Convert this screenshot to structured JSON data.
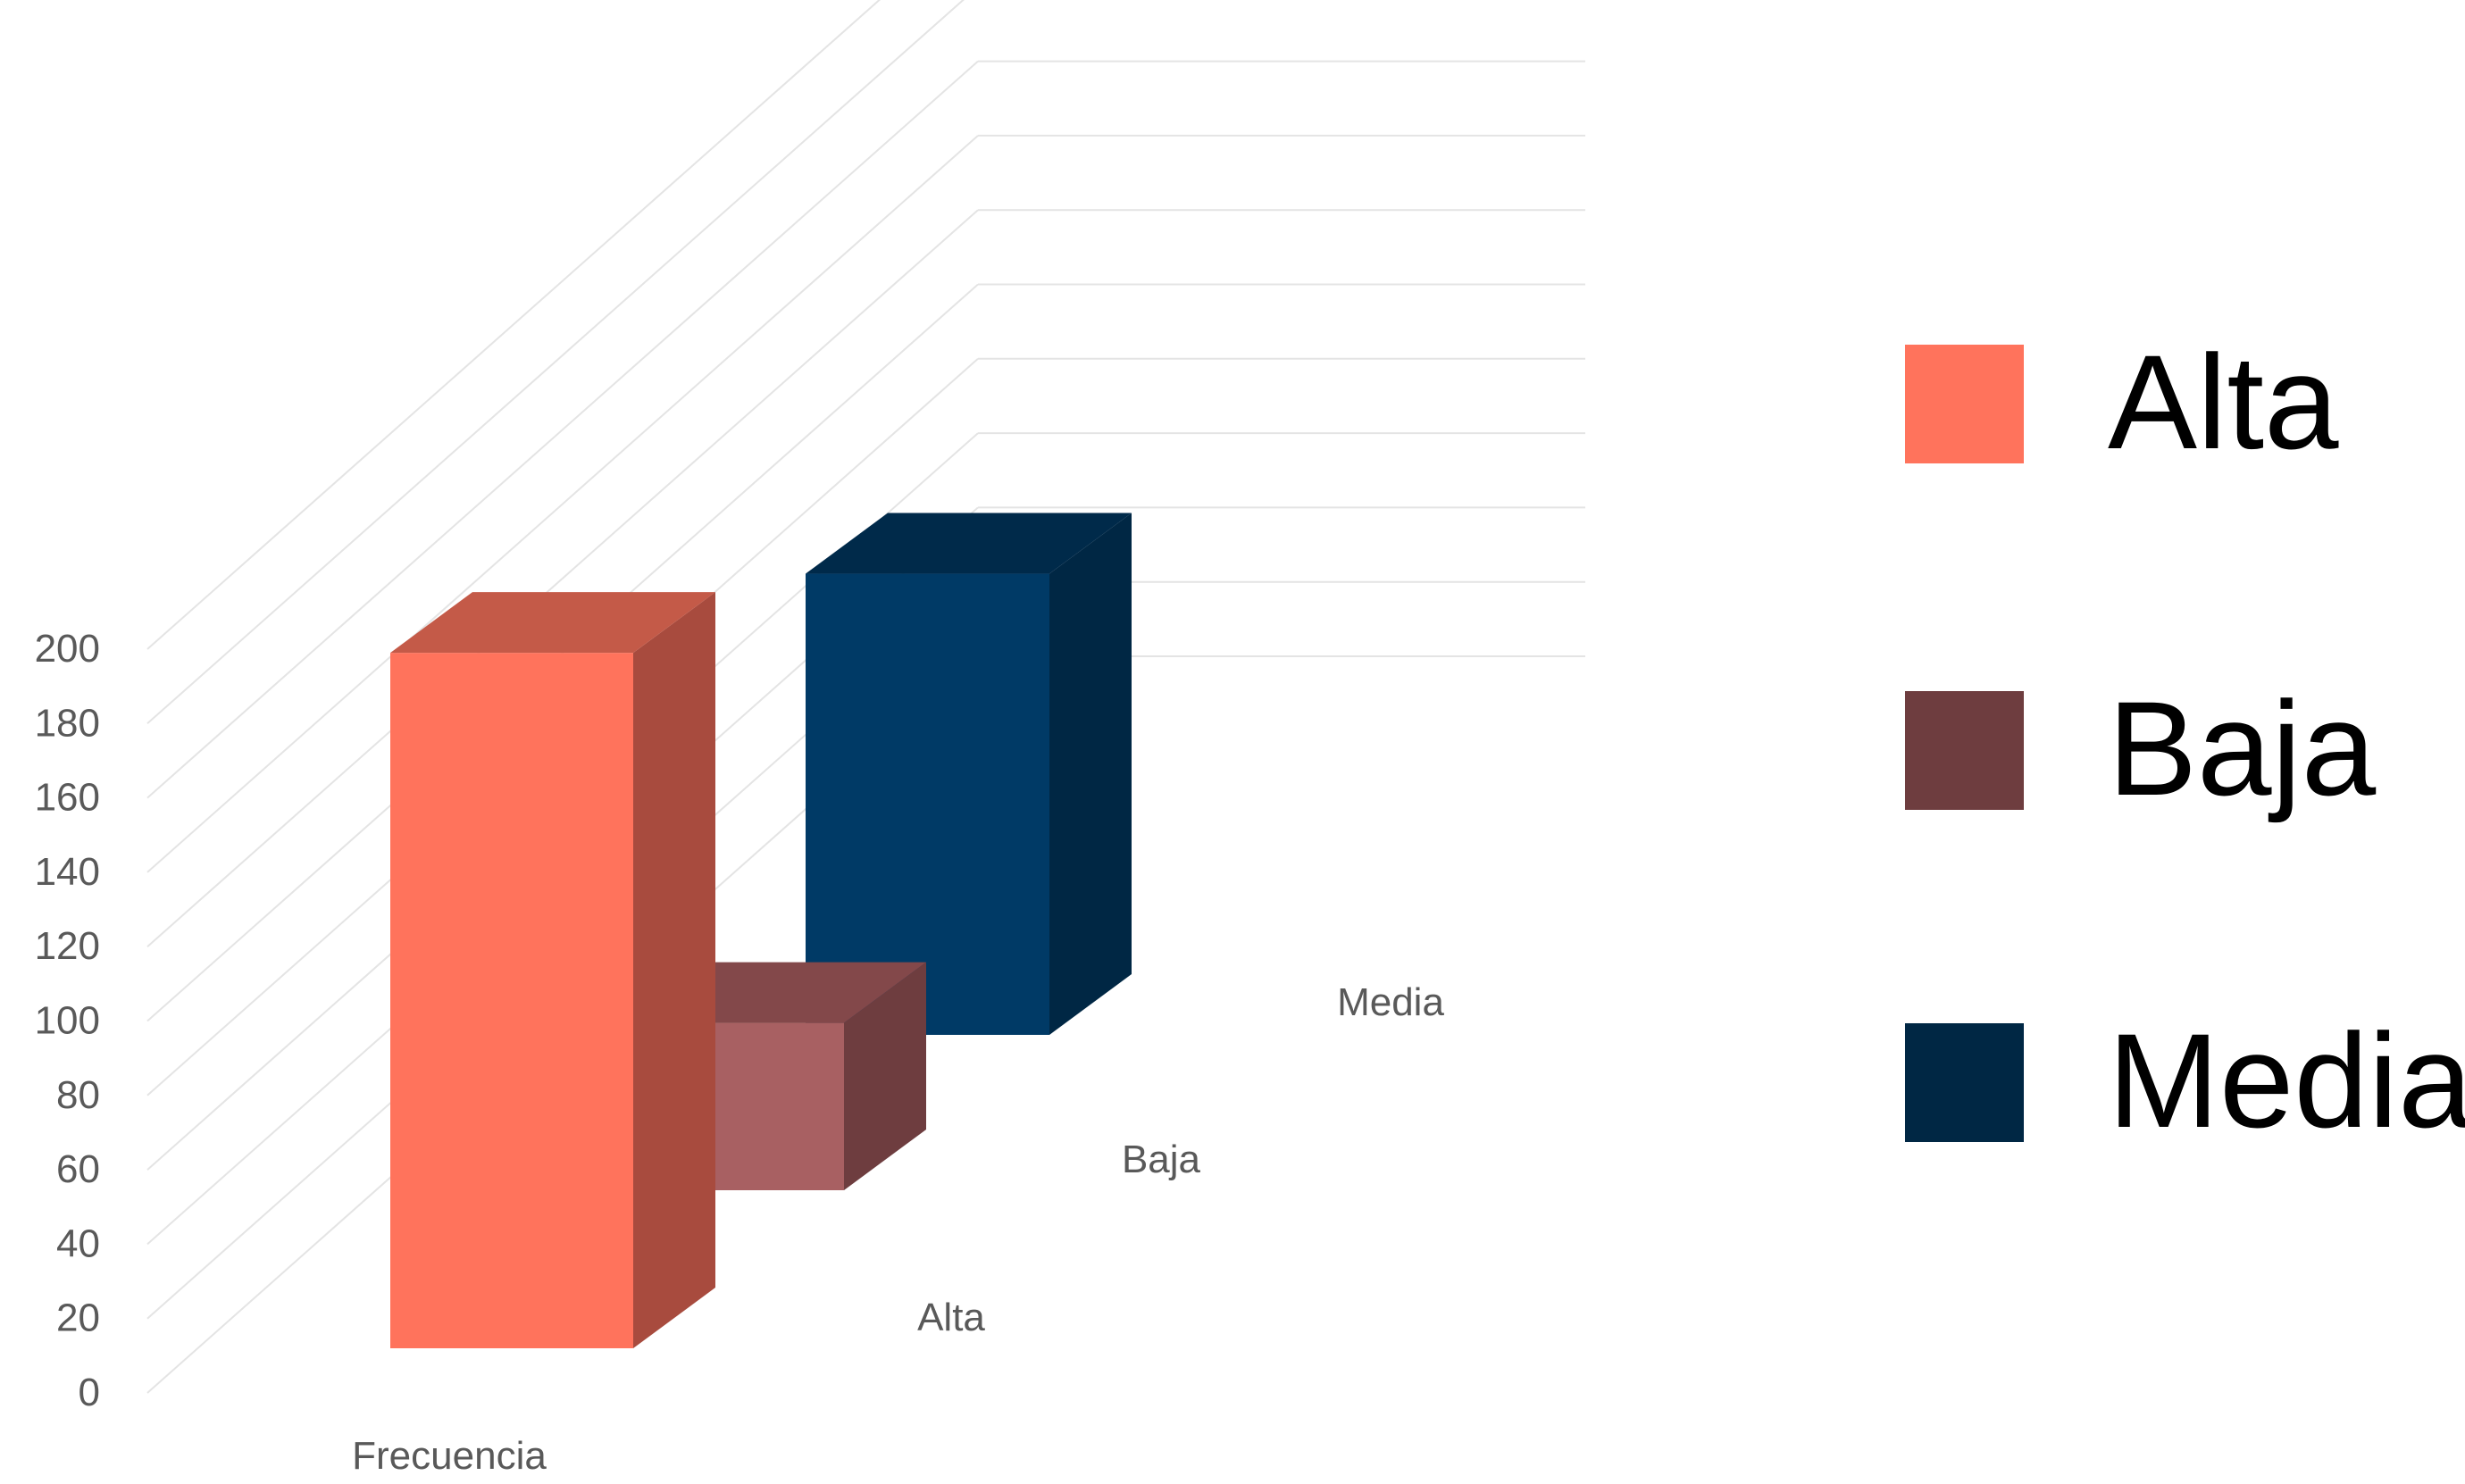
{
  "chart_data": {
    "type": "bar",
    "variant": "3d-column",
    "title": "",
    "xlabel": "",
    "ylabel": "",
    "ylim": [
      0,
      200
    ],
    "yticks": [
      0,
      20,
      40,
      60,
      80,
      100,
      120,
      140,
      160,
      180,
      200
    ],
    "gridlines": true,
    "legend_position": "right",
    "categories": [
      "Frecuencia"
    ],
    "depth_labels": [
      "Alta",
      "Baja",
      "Media"
    ],
    "series": [
      {
        "name": "Alta",
        "values": [
          187
        ],
        "color": "#FF735C",
        "side_color": "#A84B3E",
        "top_color": "#C45A48"
      },
      {
        "name": "Baja",
        "values": [
          45
        ],
        "color": "#A86062",
        "side_color": "#6E3D3F",
        "top_color": "#83484A"
      },
      {
        "name": "Media",
        "values": [
          124
        ],
        "color": "#003A66",
        "side_color": "#002744",
        "top_color": "#002A4A"
      }
    ],
    "legend": [
      {
        "label": "Alta",
        "color": "#FF735C"
      },
      {
        "label": "Baja",
        "color": "#6E3D3F"
      },
      {
        "label": "Media",
        "color": "#002744"
      }
    ]
  }
}
